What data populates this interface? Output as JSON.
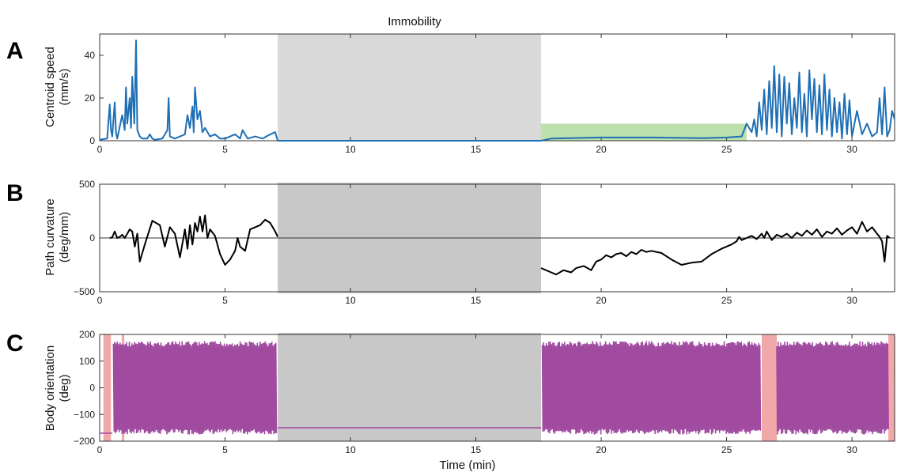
{
  "figure": {
    "band_label": "Immobility",
    "xlabel": "Time (min)",
    "colors": {
      "speed": "#1f6fb4",
      "curvature": "#000000",
      "orientation": "#a04ba0",
      "immobility_top": "#d9d9d9",
      "immobility_lower": "#c8c8c8",
      "green_band": "#9fd48a",
      "red_band": "#f0a8a8"
    }
  },
  "chart_data": [
    {
      "panel": "A",
      "type": "line",
      "ylabel": "Centroid speed",
      "yunit": "(mm/s)",
      "xlim": [
        0,
        31.7
      ],
      "ylim": [
        0,
        50
      ],
      "xticks": [
        0,
        5,
        10,
        15,
        20,
        25,
        30
      ],
      "yticks": [
        0,
        20,
        40
      ],
      "immobility": [
        7.1,
        17.6
      ],
      "green_band": {
        "x": [
          17.6,
          25.8
        ],
        "y": [
          0,
          8
        ]
      },
      "series": [
        {
          "x": [
            0.0,
            0.3,
            0.4,
            0.45,
            0.5,
            0.6,
            0.65,
            0.7,
            0.9,
            1.0,
            1.05,
            1.1,
            1.2,
            1.25,
            1.3,
            1.38,
            1.45,
            1.5,
            1.6,
            1.7,
            1.9,
            2.0,
            2.1,
            2.2,
            2.5,
            2.7,
            2.75,
            2.8,
            3.0,
            3.4,
            3.5,
            3.6,
            3.7,
            3.75,
            3.8,
            3.9,
            4.0,
            4.1,
            4.2,
            4.4,
            4.6,
            4.8,
            5.0,
            5.2,
            5.4,
            5.6,
            5.7,
            5.9,
            6.2,
            6.5,
            6.8,
            7.0,
            7.1,
            17.6,
            18.0,
            20.0,
            22.0,
            24.0,
            25.0,
            25.6,
            25.8,
            26.0,
            26.1,
            26.2,
            26.3,
            26.4,
            26.5,
            26.6,
            26.7,
            26.8,
            26.9,
            27.0,
            27.1,
            27.2,
            27.3,
            27.4,
            27.5,
            27.6,
            27.7,
            27.8,
            27.9,
            28.0,
            28.1,
            28.2,
            28.3,
            28.4,
            28.5,
            28.6,
            28.7,
            28.8,
            28.9,
            29.0,
            29.1,
            29.2,
            29.3,
            29.4,
            29.5,
            29.6,
            29.7,
            29.8,
            29.9,
            30.0,
            30.2,
            30.4,
            30.6,
            30.8,
            31.0,
            31.1,
            31.2,
            31.3,
            31.4,
            31.5,
            31.6,
            31.7
          ],
          "y": [
            0.5,
            1,
            17,
            5,
            2,
            18,
            4,
            1,
            12,
            5,
            25,
            8,
            20,
            6,
            30,
            8,
            47,
            5,
            2,
            1,
            1,
            3,
            1,
            0.5,
            1,
            5,
            20,
            2,
            1,
            3,
            12,
            6,
            16,
            4,
            25,
            10,
            14,
            4,
            6,
            2,
            3,
            1,
            1,
            2,
            3,
            1,
            5,
            1,
            2,
            1,
            3,
            4,
            0,
            0,
            1,
            1.5,
            1.5,
            1.2,
            1.5,
            2,
            8,
            4,
            10,
            2,
            18,
            5,
            24,
            3,
            28,
            6,
            35,
            4,
            31,
            2,
            30,
            8,
            27,
            3,
            20,
            6,
            32,
            4,
            22,
            2,
            33,
            10,
            29,
            4,
            26,
            3,
            31,
            5,
            24,
            2,
            20,
            4,
            18,
            1,
            22,
            3,
            19,
            2,
            14,
            3,
            8,
            2,
            4,
            20,
            3,
            25,
            2,
            5,
            14,
            10
          ]
        }
      ]
    },
    {
      "panel": "B",
      "type": "line",
      "ylabel": "Path curvature",
      "yunit": "(deg/mm)",
      "xlim": [
        0,
        31.7
      ],
      "ylim": [
        -500,
        500
      ],
      "xticks": [
        0,
        5,
        10,
        15,
        20,
        25,
        30
      ],
      "yticks": [
        -500,
        0,
        500
      ],
      "zero_line": true,
      "immobility": [
        7.1,
        17.6
      ],
      "series": [
        {
          "x": [
            0.4,
            0.5,
            0.6,
            0.7,
            0.8,
            0.9,
            1.0,
            1.1,
            1.2,
            1.3,
            1.4,
            1.5,
            1.6,
            1.8,
            2.1,
            2.4,
            2.6,
            2.8,
            3.0,
            3.2,
            3.4,
            3.5,
            3.6,
            3.7,
            3.8,
            3.9,
            4.0,
            4.1,
            4.2,
            4.3,
            4.4,
            4.6,
            4.8,
            5.0,
            5.2,
            5.4,
            5.5,
            5.6,
            5.8,
            6.0,
            6.2,
            6.4,
            6.6,
            6.8,
            7.0,
            7.1
          ],
          "y": [
            0,
            5,
            60,
            0,
            10,
            30,
            0,
            40,
            80,
            60,
            -80,
            40,
            -220,
            -60,
            160,
            120,
            -80,
            100,
            40,
            -180,
            80,
            -100,
            120,
            -60,
            140,
            60,
            200,
            60,
            210,
            0,
            80,
            20,
            -150,
            -250,
            -200,
            -120,
            0,
            -80,
            -120,
            80,
            100,
            120,
            170,
            140,
            60,
            10
          ]
        },
        {
          "x": [
            17.6,
            18.0,
            18.2,
            18.5,
            18.8,
            19.0,
            19.3,
            19.6,
            19.8,
            20.0,
            20.2,
            20.4,
            20.6,
            20.8,
            21.0,
            21.2,
            21.4,
            21.6,
            21.8,
            22.0,
            22.4,
            22.8,
            23.2,
            23.6,
            24.0,
            24.4,
            24.8,
            25.2,
            25.4,
            25.5,
            25.6,
            25.8,
            26.0,
            26.2,
            26.4,
            26.5,
            26.6,
            26.8,
            27.0,
            27.2,
            27.4,
            27.6,
            27.8,
            28.0,
            28.2,
            28.4,
            28.6,
            28.8,
            29.0,
            29.2,
            29.4,
            29.6,
            29.8,
            30.0,
            30.2,
            30.4,
            30.6,
            30.8,
            31.0,
            31.1,
            31.2,
            31.3,
            31.4,
            31.5
          ],
          "y": [
            -280,
            -320,
            -340,
            -300,
            -320,
            -280,
            -260,
            -300,
            -220,
            -200,
            -160,
            -180,
            -150,
            -140,
            -170,
            -130,
            -150,
            -110,
            -130,
            -120,
            -140,
            -200,
            -250,
            -230,
            -220,
            -150,
            -100,
            -60,
            -30,
            10,
            -20,
            0,
            20,
            -10,
            40,
            0,
            60,
            -20,
            30,
            10,
            40,
            0,
            50,
            20,
            70,
            30,
            80,
            10,
            60,
            40,
            90,
            30,
            70,
            100,
            40,
            150,
            60,
            100,
            40,
            10,
            -30,
            -220,
            20,
            0
          ]
        }
      ]
    },
    {
      "panel": "C",
      "type": "line",
      "ylabel": "Body orientation",
      "yunit": "(deg)",
      "xlim": [
        0,
        31.7
      ],
      "ylim": [
        -200,
        200
      ],
      "xticks": [
        0,
        5,
        10,
        15,
        20,
        25,
        30
      ],
      "yticks": [
        -200,
        -100,
        0,
        100,
        200
      ],
      "immobility": [
        7.1,
        17.6
      ],
      "red_bands": [
        [
          0.15,
          0.45
        ],
        [
          0.88,
          0.98
        ],
        [
          26.4,
          27.0
        ],
        [
          31.45,
          31.7
        ]
      ],
      "flat_level": -150,
      "segments": [
        {
          "x0": 0.0,
          "x1": 0.5,
          "y": -170
        },
        {
          "x0": 0.55,
          "x1": 7.05,
          "osc": "dense"
        },
        {
          "x0": 7.1,
          "x1": 17.6,
          "y": -150
        },
        {
          "x0": 17.65,
          "x1": 26.35,
          "osc": "dense"
        },
        {
          "x0": 27.0,
          "x1": 31.45,
          "osc": "dense"
        }
      ]
    }
  ]
}
